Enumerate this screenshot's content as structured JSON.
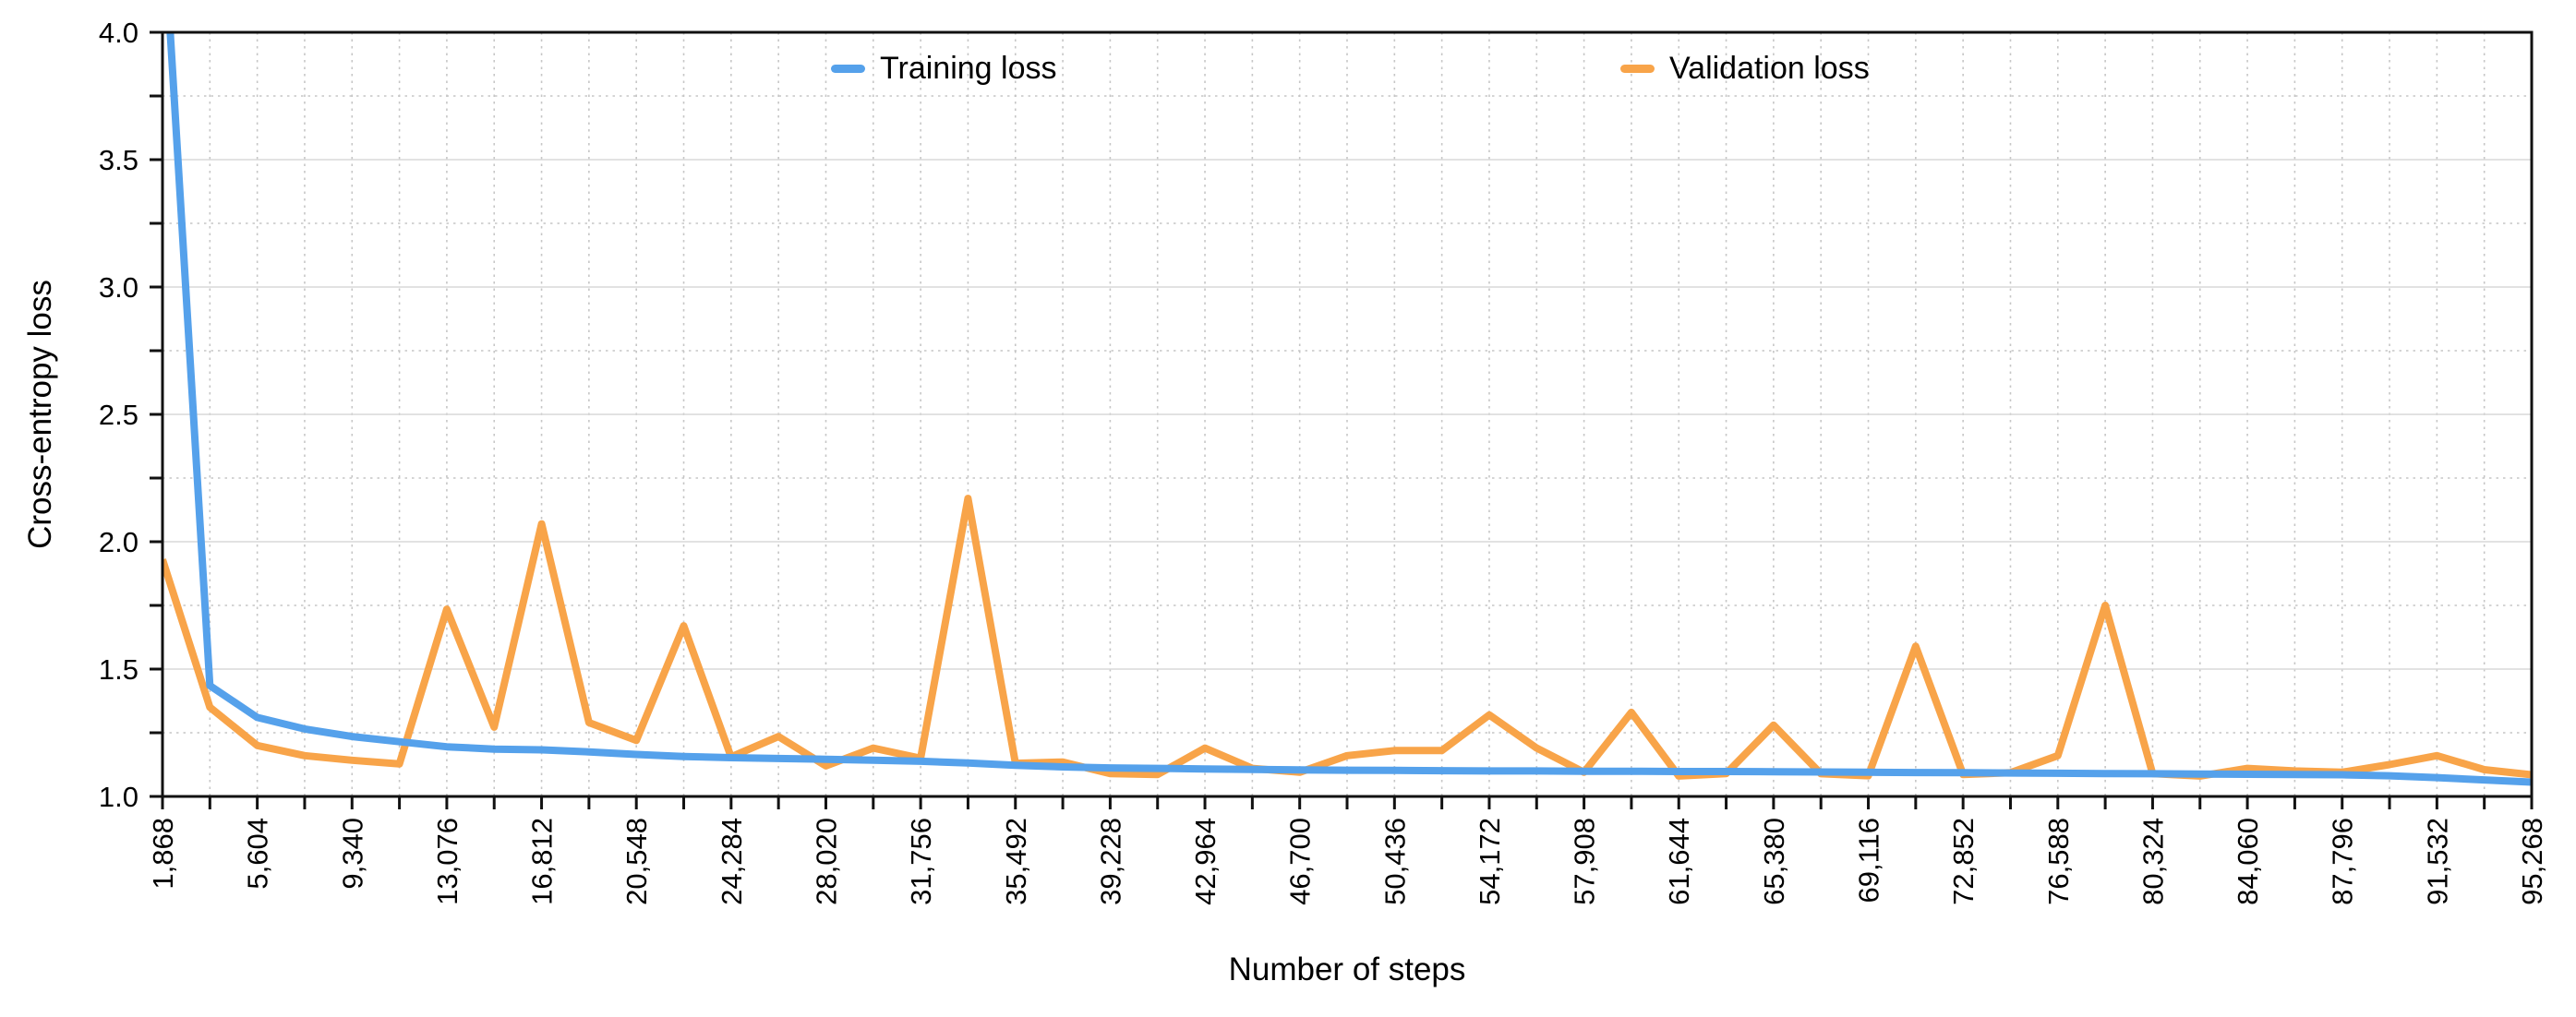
{
  "chart_data": {
    "type": "line",
    "title": "",
    "xlabel": "Number of steps",
    "ylabel": "Cross-entropy loss",
    "ylim": [
      1.0,
      4.0
    ],
    "y_major_step": 0.5,
    "y_minor_step": 0.25,
    "y_tick_labels": [
      "1.0",
      "1.5",
      "2.0",
      "2.5",
      "3.0",
      "3.5",
      "4.0"
    ],
    "x_label_every": 2,
    "x_tick_labels": [
      "1,868",
      "5,604",
      "9,340",
      "13,076",
      "16,812",
      "20,548",
      "24,284",
      "28,020",
      "31,756",
      "35,492",
      "39,228",
      "42,964",
      "46,700",
      "50,436",
      "54,172",
      "57,908",
      "61,644",
      "65,380",
      "69,116",
      "72,852",
      "76,588",
      "80,324",
      "84,060",
      "87,796",
      "91,532",
      "95,268"
    ],
    "steps": [
      1868,
      3736,
      5604,
      7472,
      9340,
      11208,
      13076,
      14944,
      16812,
      18680,
      20548,
      22416,
      24284,
      26152,
      28020,
      29888,
      31756,
      33624,
      35492,
      37360,
      39228,
      41096,
      42964,
      44832,
      46700,
      48568,
      50436,
      52304,
      54172,
      56040,
      57908,
      59776,
      61644,
      63512,
      65380,
      67248,
      69116,
      70984,
      72852,
      74720,
      76588,
      78456,
      80324,
      82192,
      84060,
      85928,
      87796,
      89664,
      91532,
      93400,
      95268
    ],
    "series": [
      {
        "name": "Training loss",
        "color": "#55A1EB",
        "values": [
          4.5,
          1.435,
          1.31,
          1.265,
          1.235,
          1.215,
          1.195,
          1.186,
          1.183,
          1.175,
          1.165,
          1.157,
          1.152,
          1.149,
          1.146,
          1.142,
          1.138,
          1.131,
          1.122,
          1.116,
          1.112,
          1.11,
          1.108,
          1.106,
          1.104,
          1.103,
          1.102,
          1.101,
          1.1,
          1.1,
          1.099,
          1.099,
          1.098,
          1.098,
          1.097,
          1.096,
          1.095,
          1.094,
          1.093,
          1.092,
          1.091,
          1.09,
          1.089,
          1.088,
          1.087,
          1.086,
          1.085,
          1.081,
          1.074,
          1.065,
          1.056
        ]
      },
      {
        "name": "Validation loss",
        "color": "#F8A449",
        "values": [
          1.93,
          1.35,
          1.2,
          1.16,
          1.142,
          1.128,
          1.735,
          1.272,
          2.07,
          1.29,
          1.22,
          1.67,
          1.155,
          1.235,
          1.12,
          1.19,
          1.15,
          2.17,
          1.13,
          1.135,
          1.09,
          1.086,
          1.19,
          1.11,
          1.095,
          1.16,
          1.18,
          1.18,
          1.32,
          1.19,
          1.095,
          1.33,
          1.08,
          1.09,
          1.28,
          1.089,
          1.081,
          1.59,
          1.086,
          1.093,
          1.16,
          1.75,
          1.09,
          1.08,
          1.11,
          1.1,
          1.095,
          1.125,
          1.16,
          1.105,
          1.085
        ]
      }
    ],
    "legend_position": "top-center",
    "grid": {
      "major_color": "#d9d9d9",
      "minor_color": "#c6c6c6",
      "frame_color": "#111111"
    },
    "note_first_training_point_clipped_above": 4.0
  }
}
